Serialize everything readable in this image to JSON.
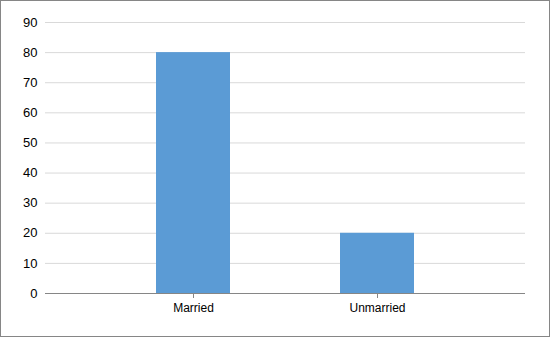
{
  "chart_data": {
    "type": "bar",
    "categories": [
      "Married",
      "Unmarried"
    ],
    "values": [
      80,
      20
    ],
    "color": "#5b9bd5",
    "ylim": [
      0,
      90
    ],
    "yticks": [
      0,
      10,
      20,
      30,
      40,
      50,
      60,
      70,
      80,
      90
    ],
    "grid": true
  }
}
